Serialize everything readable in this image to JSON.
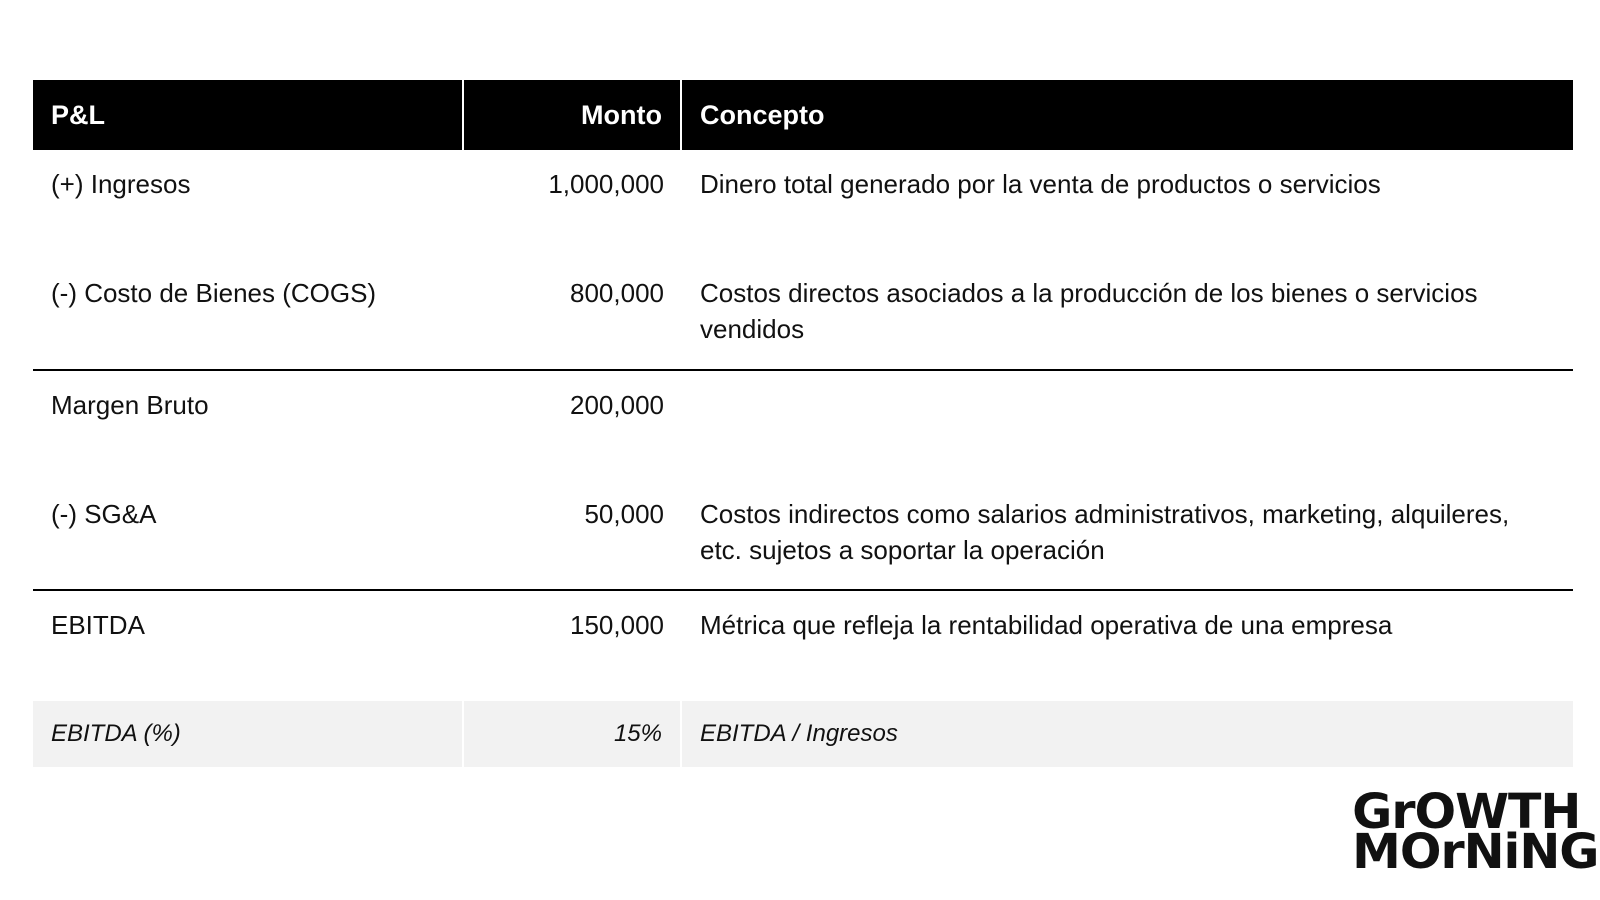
{
  "table": {
    "headers": [
      "P&L",
      "Monto",
      "Concepto"
    ],
    "rows": [
      {
        "item": "(+) Ingresos",
        "amount": "1,000,000",
        "concept": "Dinero total generado por la venta de productos o servicios"
      },
      {
        "item": "(-) Costo de Bienes (COGS)",
        "amount": "800,000",
        "concept": "Costos directos asociados a la producción de los bienes o servicios vendidos"
      },
      {
        "item": "Margen Bruto",
        "amount": "200,000",
        "concept": ""
      },
      {
        "item": "(-) SG&A",
        "amount": "50,000",
        "concept": "Costos indirectos como salarios administrativos, marketing, alquileres, etc. sujetos a soportar la operación"
      },
      {
        "item": "EBITDA",
        "amount": "150,000",
        "concept": "Métrica que refleja la rentabilidad operativa de una empresa"
      },
      {
        "item": "EBITDA (%)",
        "amount": "15%",
        "concept": "EBITDA / Ingresos"
      }
    ]
  },
  "logo": {
    "line1": "GrOWTH",
    "line2": "MOrNiNG"
  }
}
